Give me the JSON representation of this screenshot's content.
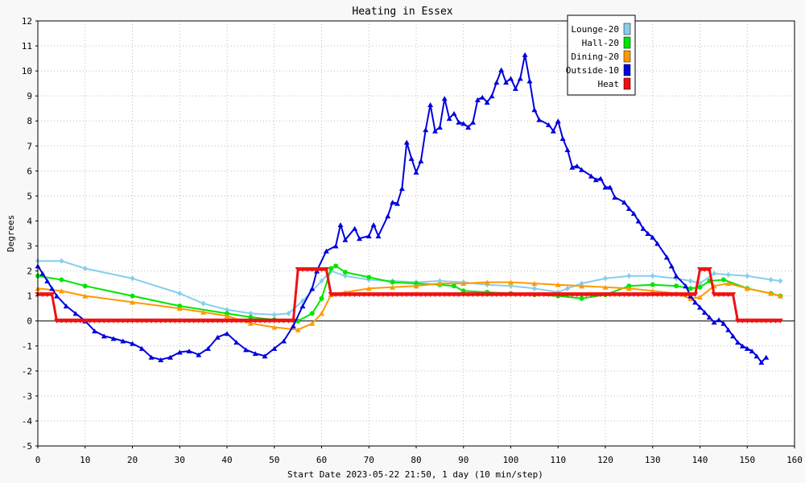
{
  "chart_data": {
    "type": "line",
    "title": "Heating in Essex",
    "xlabel": "Start Date 2023-05-22 21:50, 1 day (10 min/step)",
    "ylabel": "Degrees",
    "xlim": [
      0,
      160
    ],
    "ylim": [
      -5,
      12
    ],
    "xticks": [
      0,
      10,
      20,
      30,
      40,
      50,
      60,
      70,
      80,
      90,
      100,
      110,
      120,
      130,
      140,
      150,
      160
    ],
    "yticks": [
      -5,
      -4,
      -3,
      -2,
      -1,
      0,
      1,
      2,
      3,
      4,
      5,
      6,
      7,
      8,
      9,
      10,
      11,
      12
    ],
    "grid": true,
    "legend_position": "top-right",
    "series": [
      {
        "name": "Lounge-20",
        "color": "#87ceeb",
        "marker": "diamond",
        "points": [
          [
            0,
            2.4
          ],
          [
            5,
            2.4
          ],
          [
            10,
            2.1
          ],
          [
            20,
            1.7
          ],
          [
            30,
            1.1
          ],
          [
            35,
            0.7
          ],
          [
            40,
            0.45
          ],
          [
            45,
            0.3
          ],
          [
            50,
            0.25
          ],
          [
            53,
            0.3
          ],
          [
            56,
            0.8
          ],
          [
            60,
            1.6
          ],
          [
            62,
            2.0
          ],
          [
            65,
            1.8
          ],
          [
            70,
            1.65
          ],
          [
            75,
            1.6
          ],
          [
            80,
            1.55
          ],
          [
            85,
            1.6
          ],
          [
            90,
            1.55
          ],
          [
            95,
            1.45
          ],
          [
            100,
            1.4
          ],
          [
            105,
            1.3
          ],
          [
            110,
            1.15
          ],
          [
            112,
            1.3
          ],
          [
            115,
            1.5
          ],
          [
            120,
            1.7
          ],
          [
            125,
            1.8
          ],
          [
            130,
            1.8
          ],
          [
            135,
            1.7
          ],
          [
            138,
            1.6
          ],
          [
            140,
            1.5
          ],
          [
            143,
            1.9
          ],
          [
            146,
            1.85
          ],
          [
            150,
            1.8
          ],
          [
            155,
            1.65
          ],
          [
            157,
            1.6
          ]
        ]
      },
      {
        "name": "Hall-20",
        "color": "#00e600",
        "marker": "circle",
        "points": [
          [
            0,
            1.8
          ],
          [
            5,
            1.65
          ],
          [
            10,
            1.4
          ],
          [
            20,
            1.0
          ],
          [
            30,
            0.6
          ],
          [
            40,
            0.3
          ],
          [
            45,
            0.15
          ],
          [
            50,
            0.05
          ],
          [
            55,
            0.0
          ],
          [
            58,
            0.3
          ],
          [
            60,
            0.9
          ],
          [
            62,
            2.1
          ],
          [
            63,
            2.2
          ],
          [
            65,
            1.95
          ],
          [
            70,
            1.75
          ],
          [
            75,
            1.55
          ],
          [
            80,
            1.5
          ],
          [
            85,
            1.45
          ],
          [
            88,
            1.4
          ],
          [
            90,
            1.2
          ],
          [
            95,
            1.15
          ],
          [
            100,
            1.1
          ],
          [
            105,
            1.05
          ],
          [
            110,
            1.0
          ],
          [
            115,
            0.9
          ],
          [
            120,
            1.05
          ],
          [
            125,
            1.4
          ],
          [
            130,
            1.45
          ],
          [
            135,
            1.4
          ],
          [
            138,
            1.3
          ],
          [
            140,
            1.35
          ],
          [
            142,
            1.6
          ],
          [
            145,
            1.65
          ],
          [
            150,
            1.3
          ],
          [
            155,
            1.1
          ],
          [
            157,
            1.0
          ]
        ]
      },
      {
        "name": "Dining-20",
        "color": "#ff9900",
        "marker": "triangle",
        "points": [
          [
            0,
            1.3
          ],
          [
            5,
            1.2
          ],
          [
            10,
            1.0
          ],
          [
            20,
            0.75
          ],
          [
            30,
            0.5
          ],
          [
            35,
            0.35
          ],
          [
            40,
            0.2
          ],
          [
            45,
            -0.1
          ],
          [
            50,
            -0.25
          ],
          [
            55,
            -0.35
          ],
          [
            58,
            -0.1
          ],
          [
            60,
            0.3
          ],
          [
            62,
            1.05
          ],
          [
            65,
            1.15
          ],
          [
            70,
            1.3
          ],
          [
            75,
            1.35
          ],
          [
            80,
            1.4
          ],
          [
            85,
            1.5
          ],
          [
            90,
            1.5
          ],
          [
            95,
            1.55
          ],
          [
            100,
            1.55
          ],
          [
            105,
            1.5
          ],
          [
            110,
            1.45
          ],
          [
            115,
            1.4
          ],
          [
            120,
            1.35
          ],
          [
            125,
            1.3
          ],
          [
            130,
            1.2
          ],
          [
            135,
            1.1
          ],
          [
            138,
            0.9
          ],
          [
            140,
            0.95
          ],
          [
            143,
            1.4
          ],
          [
            146,
            1.5
          ],
          [
            150,
            1.3
          ],
          [
            155,
            1.1
          ],
          [
            157,
            1.0
          ]
        ]
      },
      {
        "name": "Outside-10",
        "color": "#0000dd",
        "marker": "triangle",
        "points": [
          [
            0,
            2.2
          ],
          [
            1,
            1.9
          ],
          [
            2,
            1.6
          ],
          [
            3,
            1.3
          ],
          [
            4,
            1.0
          ],
          [
            6,
            0.6
          ],
          [
            8,
            0.3
          ],
          [
            10,
            0.0
          ],
          [
            12,
            -0.4
          ],
          [
            14,
            -0.6
          ],
          [
            16,
            -0.7
          ],
          [
            18,
            -0.8
          ],
          [
            20,
            -0.9
          ],
          [
            22,
            -1.1
          ],
          [
            24,
            -1.45
          ],
          [
            26,
            -1.55
          ],
          [
            28,
            -1.45
          ],
          [
            30,
            -1.25
          ],
          [
            32,
            -1.2
          ],
          [
            34,
            -1.35
          ],
          [
            36,
            -1.1
          ],
          [
            38,
            -0.65
          ],
          [
            40,
            -0.5
          ],
          [
            42,
            -0.85
          ],
          [
            44,
            -1.15
          ],
          [
            46,
            -1.3
          ],
          [
            48,
            -1.4
          ],
          [
            50,
            -1.1
          ],
          [
            52,
            -0.8
          ],
          [
            54,
            -0.2
          ],
          [
            56,
            0.6
          ],
          [
            58,
            1.3
          ],
          [
            59,
            2.0
          ],
          [
            61,
            2.8
          ],
          [
            63,
            3.0
          ],
          [
            64,
            3.85
          ],
          [
            65,
            3.25
          ],
          [
            67,
            3.7
          ],
          [
            68,
            3.3
          ],
          [
            70,
            3.4
          ],
          [
            71,
            3.85
          ],
          [
            72,
            3.4
          ],
          [
            74,
            4.2
          ],
          [
            75,
            4.75
          ],
          [
            76,
            4.7
          ],
          [
            77,
            5.3
          ],
          [
            78,
            7.15
          ],
          [
            79,
            6.5
          ],
          [
            80,
            5.95
          ],
          [
            81,
            6.4
          ],
          [
            82,
            7.65
          ],
          [
            83,
            8.65
          ],
          [
            84,
            7.6
          ],
          [
            85,
            7.75
          ],
          [
            86,
            8.9
          ],
          [
            87,
            8.1
          ],
          [
            88,
            8.3
          ],
          [
            89,
            7.95
          ],
          [
            90,
            7.9
          ],
          [
            91,
            7.75
          ],
          [
            92,
            7.95
          ],
          [
            93,
            8.85
          ],
          [
            94,
            8.95
          ],
          [
            95,
            8.75
          ],
          [
            96,
            9.0
          ],
          [
            97,
            9.55
          ],
          [
            98,
            10.05
          ],
          [
            99,
            9.55
          ],
          [
            100,
            9.7
          ],
          [
            101,
            9.3
          ],
          [
            102,
            9.7
          ],
          [
            103,
            10.65
          ],
          [
            104,
            9.6
          ],
          [
            105,
            8.45
          ],
          [
            106,
            8.05
          ],
          [
            108,
            7.85
          ],
          [
            109,
            7.6
          ],
          [
            110,
            8.0
          ],
          [
            111,
            7.3
          ],
          [
            112,
            6.85
          ],
          [
            113,
            6.15
          ],
          [
            114,
            6.2
          ],
          [
            115,
            6.05
          ],
          [
            117,
            5.8
          ],
          [
            118,
            5.65
          ],
          [
            119,
            5.7
          ],
          [
            120,
            5.35
          ],
          [
            121,
            5.35
          ],
          [
            122,
            4.95
          ],
          [
            124,
            4.75
          ],
          [
            125,
            4.5
          ],
          [
            126,
            4.3
          ],
          [
            127,
            4.0
          ],
          [
            128,
            3.7
          ],
          [
            129,
            3.5
          ],
          [
            130,
            3.35
          ],
          [
            131,
            3.1
          ],
          [
            133,
            2.55
          ],
          [
            134,
            2.2
          ],
          [
            135,
            1.8
          ],
          [
            137,
            1.4
          ],
          [
            138,
            1.0
          ],
          [
            139,
            0.75
          ],
          [
            140,
            0.55
          ],
          [
            141,
            0.35
          ],
          [
            142,
            0.15
          ],
          [
            143,
            -0.05
          ],
          [
            144,
            0.05
          ],
          [
            145,
            -0.1
          ],
          [
            146,
            -0.35
          ],
          [
            147,
            -0.6
          ],
          [
            148,
            -0.85
          ],
          [
            149,
            -1.0
          ],
          [
            150,
            -1.1
          ],
          [
            151,
            -1.2
          ],
          [
            152,
            -1.4
          ],
          [
            153,
            -1.65
          ],
          [
            154,
            -1.45
          ]
        ]
      },
      {
        "name": "Heat",
        "color": "#ee1111",
        "marker": "triangle-down",
        "points": [
          [
            0,
            1.05
          ],
          [
            3,
            1.05
          ],
          [
            4,
            0.0
          ],
          [
            54,
            0.0
          ],
          [
            55,
            2.05
          ],
          [
            61,
            2.05
          ],
          [
            62,
            1.05
          ],
          [
            139,
            1.05
          ],
          [
            140,
            2.05
          ],
          [
            142,
            2.05
          ],
          [
            143,
            1.05
          ],
          [
            147,
            1.05
          ],
          [
            148,
            0.0
          ],
          [
            157,
            0.0
          ]
        ]
      }
    ]
  }
}
